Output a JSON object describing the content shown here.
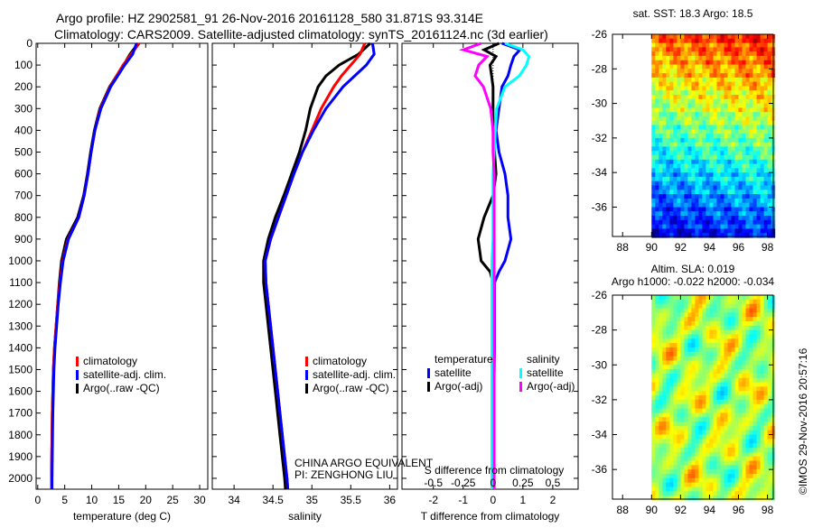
{
  "title_line1": "Argo profile: HZ 2902581_91 26-Nov-2016 20161128_580 31.871S 93.314E",
  "title_line2": "Climatology: CARS2009. Satellite-adjusted climatology: synTS_20161124.nc (3d earlier)",
  "credit": "©IMOS 29-Nov-2016 20:57:16",
  "colors": {
    "climatology": "#ff0000",
    "satellite": "#0000ff",
    "argo": "#000000",
    "s_satellite": "#00ffff",
    "s_argo": "#ff00ff"
  },
  "chart_data": [
    {
      "type": "line",
      "name": "temperature",
      "xlabel": "temperature (deg C)",
      "ylabel": "depth",
      "xlim": [
        -0.3,
        31.5
      ],
      "ylim": [
        2050,
        0
      ],
      "xticks": [
        0,
        5,
        10,
        15,
        20,
        25,
        30
      ],
      "yticks": [
        0,
        100,
        200,
        300,
        400,
        500,
        600,
        700,
        800,
        900,
        1000,
        1100,
        1200,
        1300,
        1400,
        1500,
        1600,
        1700,
        1800,
        1900,
        2000
      ],
      "depth": [
        0,
        50,
        100,
        200,
        300,
        400,
        500,
        600,
        700,
        800,
        900,
        1000,
        1100,
        1200,
        1300,
        1400,
        1500,
        1600,
        1700,
        1800,
        1900,
        2000,
        2050
      ],
      "legend": [
        "climatology",
        "satellite-adj. clim.",
        "Argo(..raw -QC)"
      ],
      "series": [
        {
          "name": "climatology",
          "values": [
            18.8,
            17.3,
            15.8,
            13.4,
            11.6,
            10.6,
            9.9,
            9.3,
            8.6,
            7.6,
            5.6,
            4.6,
            4.1,
            3.7,
            3.4,
            3.1,
            2.9,
            2.8,
            2.7,
            2.65,
            2.6,
            2.55,
            2.55
          ]
        },
        {
          "name": "satellite-adj. clim.",
          "values": [
            18.3,
            17.6,
            16.1,
            13.5,
            11.7,
            10.6,
            9.9,
            9.3,
            8.6,
            7.6,
            5.7,
            4.7,
            4.2,
            3.8,
            3.5,
            3.2,
            3.0,
            2.9,
            2.8,
            2.75,
            2.7,
            2.65,
            2.65
          ]
        },
        {
          "name": "Argo(..raw -QC)",
          "values": [
            18.6,
            17.1,
            15.9,
            13.3,
            11.5,
            10.5,
            9.8,
            9.2,
            8.5,
            7.4,
            5.3,
            4.4,
            4.0,
            3.7,
            3.4,
            3.1,
            2.9,
            2.8,
            2.7,
            2.65,
            2.6,
            2.55,
            2.55
          ]
        }
      ]
    },
    {
      "type": "line",
      "name": "salinity",
      "xlabel": "salinity",
      "ylabel": "depth",
      "xlim": [
        33.72,
        36.1
      ],
      "ylim": [
        2050,
        0
      ],
      "xticks": [
        34,
        34.5,
        35,
        35.5,
        36
      ],
      "depth": [
        0,
        50,
        100,
        150,
        200,
        300,
        400,
        500,
        600,
        700,
        800,
        900,
        1000,
        1100,
        1200,
        1400,
        1600,
        1800,
        2000,
        2050
      ],
      "legend": [
        "climatology",
        "satellite-adj. clim.",
        "Argo(..raw -QC)"
      ],
      "annotation": [
        "CHINA ARGO EQUIVALENT",
        "PI: ZENGHONG LIU"
      ],
      "series": [
        {
          "name": "climatology",
          "values": [
            35.68,
            35.62,
            35.5,
            35.38,
            35.28,
            35.12,
            35.0,
            34.88,
            34.77,
            34.67,
            34.57,
            34.47,
            34.4,
            34.41,
            34.44,
            34.5,
            34.56,
            34.62,
            34.68,
            34.69
          ]
        },
        {
          "name": "satellite-adj. clim.",
          "values": [
            35.78,
            35.8,
            35.7,
            35.55,
            35.4,
            35.18,
            35.02,
            34.88,
            34.77,
            34.67,
            34.57,
            34.47,
            34.4,
            34.41,
            34.44,
            34.5,
            34.56,
            34.62,
            34.68,
            34.69
          ]
        },
        {
          "name": "Argo(..raw -QC)",
          "values": [
            35.75,
            35.6,
            35.35,
            35.18,
            35.08,
            34.98,
            34.92,
            34.84,
            34.74,
            34.64,
            34.53,
            34.44,
            34.38,
            34.38,
            34.41,
            34.47,
            34.53,
            34.59,
            34.65,
            34.66
          ]
        }
      ]
    },
    {
      "type": "line",
      "name": "differences",
      "xlabel": "T difference from climatology",
      "x2label": "S difference from climatology",
      "xlim": [
        -3.05,
        2.85
      ],
      "ylim": [
        2050,
        0
      ],
      "xticks": [
        -2,
        -1,
        0,
        1,
        2
      ],
      "x2ticks": [
        -0.5,
        -0.25,
        0,
        0.25,
        0.5
      ],
      "depth": [
        0,
        30,
        60,
        100,
        150,
        200,
        300,
        400,
        500,
        600,
        700,
        800,
        900,
        1000,
        1050,
        1100,
        1200,
        1400,
        1600,
        1800,
        2000,
        2050
      ],
      "legend_titles": [
        "temperature",
        "salinity"
      ],
      "legend": [
        "satellite",
        "Argo(-adj)",
        "satellite",
        "Argo(-adj)"
      ],
      "series": [
        {
          "name": "T satellite",
          "values": [
            0.3,
            0.9,
            0.7,
            0.6,
            0.5,
            0.3,
            0.2,
            0.1,
            0.2,
            0.4,
            0.5,
            0.5,
            0.6,
            0.4,
            0.2,
            0.05,
            0.05,
            0.05,
            0.03,
            0.02,
            0.02,
            0.02
          ]
        },
        {
          "name": "T Argo(-adj)",
          "values": [
            0.2,
            -0.3,
            0.1,
            -0.1,
            -0.05,
            0.0,
            0.0,
            0.0,
            0.05,
            0.1,
            0.0,
            -0.3,
            -0.5,
            -0.4,
            -0.1,
            0.0,
            0.0,
            0.0,
            0.0,
            0.0,
            0.0,
            0.0
          ]
        },
        {
          "name": "S satellite",
          "values": [
            0.1,
            0.25,
            0.3,
            0.28,
            0.22,
            0.1,
            0.03,
            0.02,
            0.01,
            0.0,
            0.0,
            0.0,
            0.0,
            -0.01,
            -0.01,
            -0.01,
            -0.01,
            -0.01,
            -0.01,
            -0.01,
            -0.01,
            -0.01
          ]
        },
        {
          "name": "S Argo(-adj)",
          "values": [
            -0.1,
            -0.25,
            -0.05,
            -0.12,
            -0.15,
            -0.08,
            -0.02,
            0.0,
            0.0,
            0.01,
            0.01,
            0.01,
            0.01,
            0.01,
            0.01,
            0.01,
            0.01,
            0.01,
            0.01,
            0.01,
            0.01,
            0.01
          ]
        }
      ]
    },
    {
      "type": "heatmap",
      "name": "sst-map",
      "title": "sat. SST: 18.3 Argo: 18.5",
      "xlim": [
        87.3,
        98.4
      ],
      "ylim": [
        -37.7,
        -26
      ],
      "xticks": [
        88,
        90,
        92,
        94,
        96,
        98
      ],
      "yticks": [
        -26,
        -28,
        -30,
        -32,
        -34,
        -36
      ],
      "data_lon_start": 90
    },
    {
      "type": "heatmap",
      "name": "sla-map",
      "title_line1": "Altim. SLA: 0.019",
      "title_line2": "Argo h1000: -0.022 h2000: -0.034",
      "xlim": [
        87.3,
        98.4
      ],
      "ylim": [
        -37.7,
        -26
      ],
      "xticks": [
        88,
        90,
        92,
        94,
        96,
        98
      ],
      "yticks": [
        -26,
        -28,
        -30,
        -32,
        -34,
        -36
      ],
      "data_lon_start": 90
    }
  ]
}
